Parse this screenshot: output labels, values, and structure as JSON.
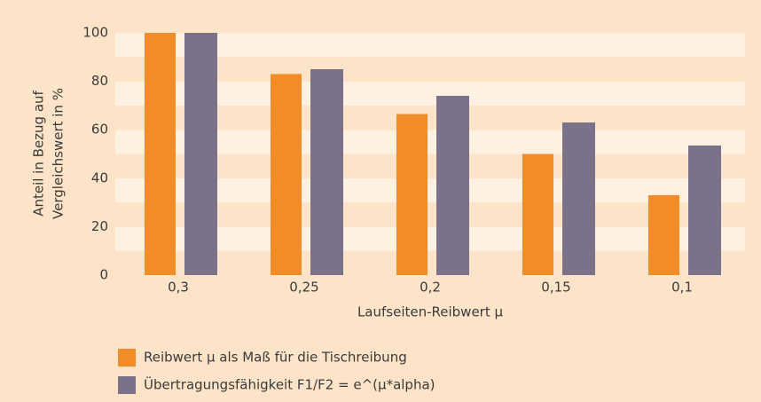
{
  "chart_data": {
    "type": "bar",
    "ylabel": [
      "Anteil in Bezug auf",
      "Vergleichswert in %"
    ],
    "xlabel": "Laufseiten-Reibwert μ",
    "categories": [
      "0,3",
      "0,25",
      "0,2",
      "0,15",
      "0,1"
    ],
    "series": [
      {
        "name": "Reibwert μ als Maß für die Tischreibung",
        "color": "#f28c28",
        "values": [
          100,
          83,
          66.5,
          50,
          33
        ]
      },
      {
        "name": "Übertragungsfähigkeit F1/F2 = e^(μ*alpha)",
        "color": "#7b7289",
        "values": [
          100,
          85,
          74,
          63,
          53.5
        ]
      }
    ],
    "ylim": [
      0,
      100
    ],
    "yticks": [
      0,
      20,
      40,
      60,
      80,
      100
    ],
    "grid": true
  }
}
